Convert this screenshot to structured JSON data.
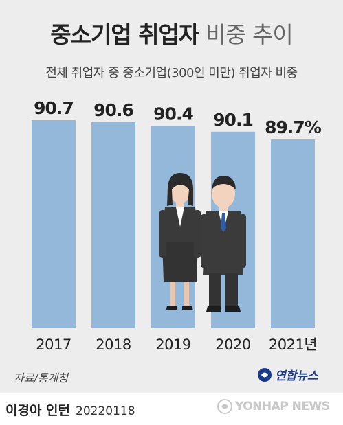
{
  "title": {
    "bold": "중소기업 취업자",
    "light": "비중 추이"
  },
  "subtitle": "전체 취업자 중 중소기업(300인 미만) 취업자 비중",
  "source": "자료/통계청",
  "brand": "연합뉴스",
  "author": "이경아 인턴",
  "date": "20220118",
  "watermark": "YONHAP NEWS",
  "colors": {
    "bar": "#94b8d9",
    "background": "#ededed",
    "text": "#222222"
  },
  "chart_data": {
    "type": "bar",
    "categories": [
      "2017",
      "2018",
      "2019",
      "2020",
      "2021년"
    ],
    "values": [
      90.7,
      90.6,
      90.4,
      90.1,
      89.7
    ],
    "value_labels": [
      "90.7",
      "90.6",
      "90.4",
      "90.1",
      "89.7%"
    ],
    "title": "중소기업 취업자 비중 추이",
    "subtitle": "전체 취업자 중 중소기업(300인 미만) 취업자 비중",
    "xlabel": "",
    "ylabel": "",
    "grid": false,
    "legend": "none"
  }
}
